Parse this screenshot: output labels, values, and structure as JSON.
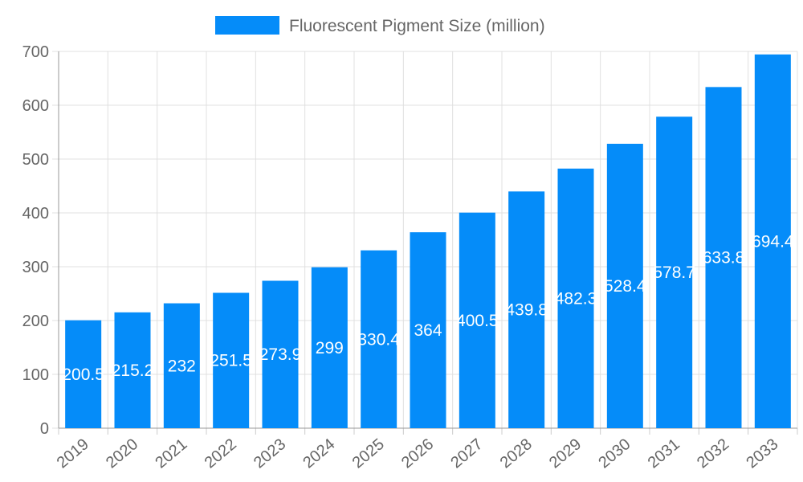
{
  "chart_data": {
    "type": "bar",
    "categories": [
      "2019",
      "2020",
      "2021",
      "2022",
      "2023",
      "2024",
      "2025",
      "2026",
      "2027",
      "2028",
      "2029",
      "2030",
      "2031",
      "2032",
      "2033"
    ],
    "series": [
      {
        "name": "Fluorescent Pigment Size (million)",
        "color": "#058cf9",
        "values": [
          200.5,
          215.2,
          232,
          251.5,
          273.9,
          299,
          330.4,
          364,
          400.5,
          439.8,
          482.3,
          528.4,
          578.7,
          633.8,
          694.4
        ]
      }
    ],
    "ylim": [
      0,
      700
    ],
    "yticks": [
      0,
      100,
      200,
      300,
      400,
      500,
      600,
      700
    ],
    "grid": true,
    "legend": "top"
  }
}
